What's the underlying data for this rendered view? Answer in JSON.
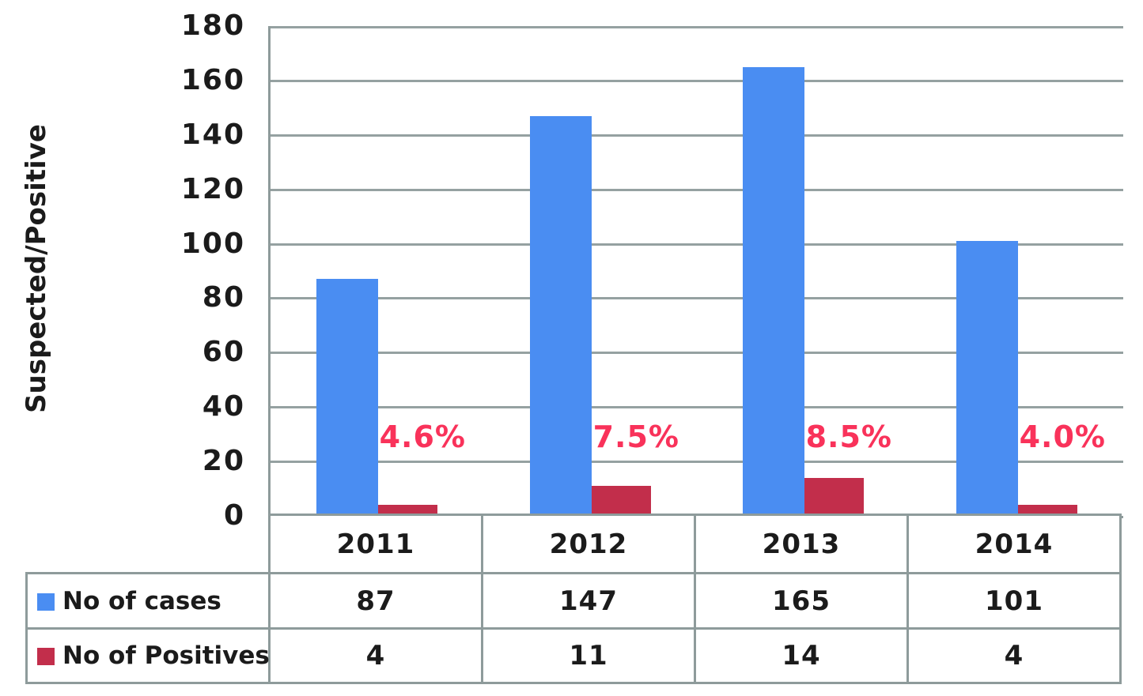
{
  "chart_data": {
    "type": "bar",
    "title": "",
    "categories": [
      "2011",
      "2012",
      "2013",
      "2014"
    ],
    "series": [
      {
        "name": "No of cases",
        "color": "#4a8df2",
        "values": [
          87,
          147,
          165,
          101
        ]
      },
      {
        "name": "No of Positives",
        "color": "#c22e4b",
        "values": [
          4,
          11,
          14,
          4
        ]
      }
    ],
    "percent_labels": [
      "4.6%",
      "7.5%",
      "8.5%",
      "4.0%"
    ],
    "xlabel": "",
    "ylabel": "Suspected/Positive",
    "ylim": [
      0,
      180
    ],
    "yticks": [
      0,
      20,
      40,
      60,
      80,
      100,
      120,
      140,
      160,
      180
    ],
    "grid": "horizontal-on",
    "legend_position": "table-left-of-rows",
    "colors": {
      "cases_bar": "#4a8df2",
      "positives_bar": "#c22e4b",
      "percent_text": "#f9325a",
      "gridline": "#95a1a1",
      "table_border": "#8e9b9b",
      "text": "#1b1b1b"
    }
  }
}
